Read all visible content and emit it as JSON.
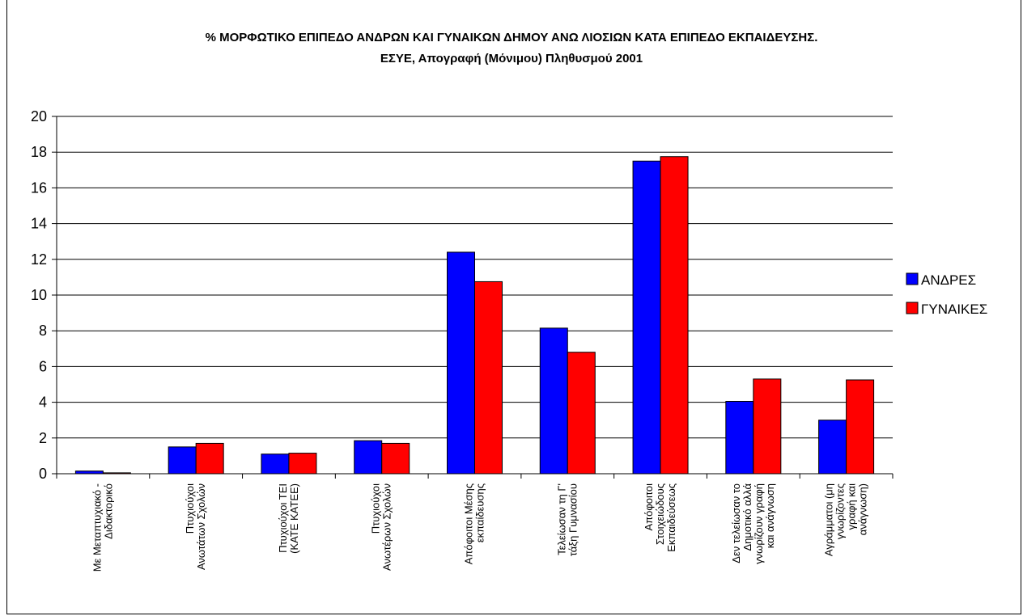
{
  "chart_data": {
    "type": "bar",
    "title": "% ΜΟΡΦΩΤΙΚΟ ΕΠΙΠΕΔΟ ΑΝΔΡΩΝ ΚΑΙ ΓΥΝΑΙΚΩΝ ΔΗΜΟΥ ΑΝΩ ΛΙΟΣΙΩΝ ΚΑΤΑ ΕΠΙΠΕΔΟ ΕΚΠΑΙΔΕΥΣΗΣ.",
    "subtitle": "ΕΣΥΕ, Απογραφή (Μόνιμου) Πληθυσμού 2001",
    "xlabel": "",
    "ylabel": "",
    "ylim": [
      0,
      20
    ],
    "yticks": [
      0,
      2,
      4,
      6,
      8,
      10,
      12,
      14,
      16,
      18,
      20
    ],
    "grid": true,
    "legend_position": "right",
    "categories": [
      [
        "Με Μεταπτυχιακό -",
        "Διδακτορικό"
      ],
      [
        "Πτυχιούχοι",
        "Ανωτάτων Σχολών"
      ],
      [
        "Πτυχιούχοι ΤΕΙ",
        "(ΚΑΤΕ ΚΑΤΕΕ)"
      ],
      [
        "Πτυχιούχοι",
        "Ανωτέρων Σχολών"
      ],
      [
        "Απόφοιτοι Μέσης",
        "εκπαίδευσης"
      ],
      [
        "Τελείωσαν τη Γ'",
        "τάξη Γυμνασίου"
      ],
      [
        "Απόφοιτοι",
        "Στοιχειώδους",
        "Εκπαιδεύσεως"
      ],
      [
        "Δεν τελείωσαν το",
        "Δημοτικό αλλά",
        "γνωρίζουν γραφή",
        "και ανάγνωση"
      ],
      [
        "Αγράμματοι (μη",
        "γνωρίζοντες",
        "γραφή και",
        "ανάγνωση)"
      ]
    ],
    "series": [
      {
        "name": "ΑΝΔΡΕΣ",
        "color": "#0000ff",
        "values": [
          0.15,
          1.5,
          1.1,
          1.85,
          12.4,
          8.15,
          17.5,
          4.05,
          3.0
        ]
      },
      {
        "name": "ΓΥΝΑΙΚΕΣ",
        "color": "#ff0000",
        "values": [
          0.05,
          1.7,
          1.15,
          1.7,
          10.75,
          6.8,
          17.75,
          5.3,
          5.25
        ]
      }
    ]
  }
}
